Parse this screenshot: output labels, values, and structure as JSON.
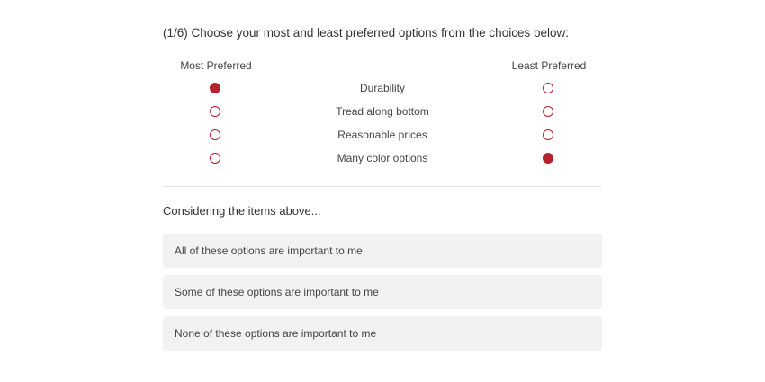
{
  "question": {
    "title": "(1/6) Choose your most and least preferred options from the choices below:"
  },
  "headers": {
    "most": "Most Preferred",
    "least": "Least Preferred"
  },
  "accent_color": "#b5222e",
  "items": [
    {
      "label": "Durability",
      "most_selected": true,
      "least_selected": false
    },
    {
      "label": "Tread along bottom",
      "most_selected": false,
      "least_selected": false
    },
    {
      "label": "Reasonable prices",
      "most_selected": false,
      "least_selected": false
    },
    {
      "label": "Many color options",
      "most_selected": false,
      "least_selected": true
    }
  ],
  "followup": {
    "prompt": "Considering the items above...",
    "options": [
      "All of these options are important to me",
      "Some of these options are important to me",
      "None of these options are important to me"
    ]
  }
}
